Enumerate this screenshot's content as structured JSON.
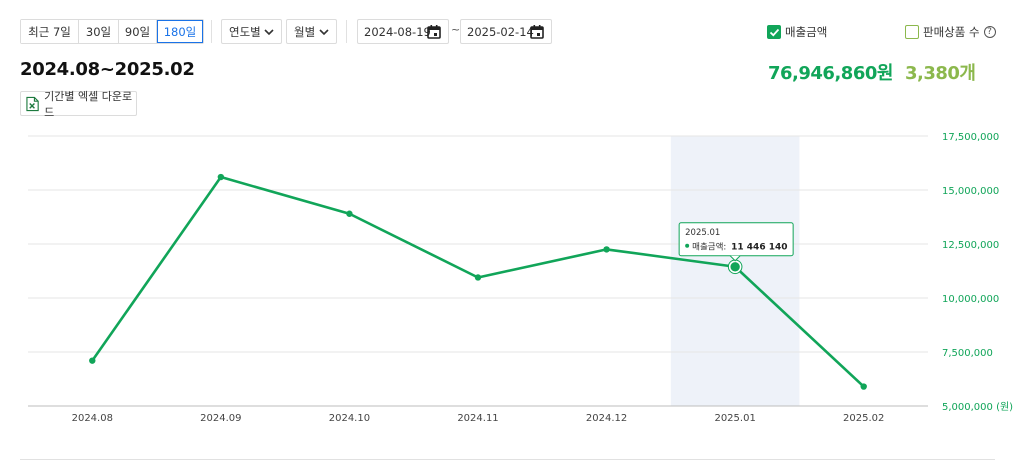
{
  "period_buttons": [
    {
      "label": "최근 7일",
      "active": false
    },
    {
      "label": "30일",
      "active": false
    },
    {
      "label": "90일",
      "active": false
    },
    {
      "label": "180일",
      "active": true
    }
  ],
  "filters": {
    "year_select": "연도별",
    "month_select": "월별"
  },
  "date_range": {
    "start": "2024-08-19",
    "separator": "~",
    "end": "2025-02-14"
  },
  "legend": {
    "sales_label": "매출금액",
    "sales_checked": true,
    "products_label": "판매상품 수",
    "products_checked": false,
    "help": "?"
  },
  "summary": {
    "range_title": "2024.08~2025.02",
    "total_sales": "76,946,860원",
    "total_products": "3,380개"
  },
  "excel_button": "기간별 엑셀 다운로드",
  "colors": {
    "line": "#11a559",
    "products": "#8cb84d",
    "highlight_band": "#eef2f9",
    "grid": "#e5e5e5",
    "active_button": "#1a73e8"
  },
  "icons": [
    "chevron-down-icon",
    "calendar-icon",
    "checkbox-icon",
    "help-icon",
    "excel-icon"
  ],
  "chart_data": {
    "type": "line",
    "categories": [
      "2024.08",
      "2024.09",
      "2024.10",
      "2024.11",
      "2024.12",
      "2025.01",
      "2025.02"
    ],
    "series": [
      {
        "name": "매출금액",
        "values": [
          7100000,
          15600000,
          13900000,
          10950000,
          12250000,
          11446140,
          5900000
        ]
      }
    ],
    "ylim": [
      5000000,
      17500000
    ],
    "y_ticks": [
      5000000,
      7500000,
      10000000,
      12500000,
      15000000,
      17500000
    ],
    "y_tick_labels": [
      "5,000,000 (원)",
      "7,500,000",
      "10,000,000",
      "12,500,000",
      "15,000,000",
      "17,500,000"
    ],
    "highlighted_category": "2025.01",
    "tooltip": {
      "title": "2025.01",
      "label": "매출금액:",
      "value": "11 446 140"
    },
    "y_axis_position": "right",
    "grid": true
  }
}
